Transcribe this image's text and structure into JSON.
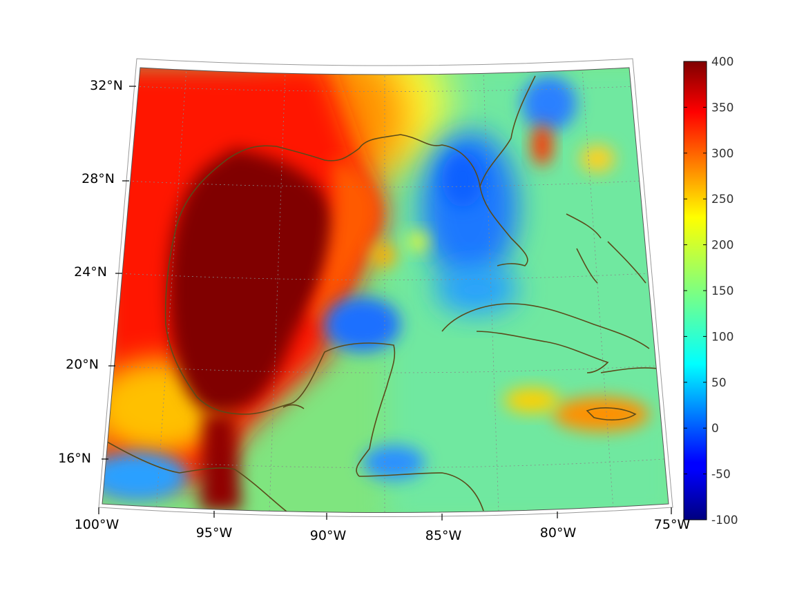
{
  "map": {
    "projection": "conic (lambert-like)",
    "region": "Gulf of Mexico and Caribbean",
    "lon_range": [
      -100,
      -75
    ],
    "lat_range": [
      14,
      33
    ],
    "lon_tick_labels": [
      "100°W",
      "95°W",
      "90°W",
      "85°W",
      "80°W",
      "75°W"
    ],
    "lat_tick_labels": [
      "32°N",
      "28°N",
      "24°N",
      "20°N",
      "16°N"
    ],
    "grid": "dotted",
    "coastline_color": "#5a4a1a"
  },
  "colorbar": {
    "colormap": "jet",
    "range": [
      -100,
      400
    ],
    "tick_labels": [
      "400",
      "350",
      "300",
      "250",
      "200",
      "150",
      "100",
      "50",
      "0",
      "-50",
      "-100"
    ]
  }
}
